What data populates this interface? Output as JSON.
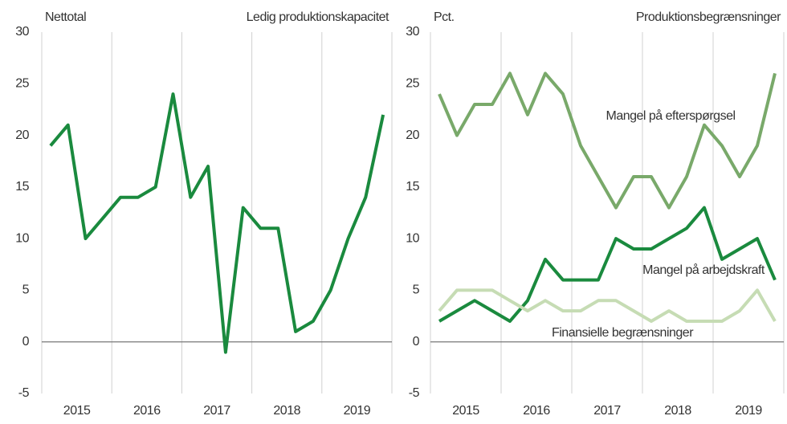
{
  "chart_data": [
    {
      "type": "line",
      "title": "Ledig produktionskapacitet",
      "ylabel": "Nettotal",
      "x_labels": [
        "2015",
        "2016",
        "2017",
        "2018",
        "2019"
      ],
      "ylim": [
        -5,
        30
      ],
      "yticks": [
        -5,
        0,
        5,
        10,
        15,
        20,
        25,
        30
      ],
      "series": [
        {
          "color": "#1a8a3e",
          "values": [
            19,
            21,
            10,
            12,
            14,
            14,
            15,
            24,
            14,
            17,
            -1,
            13,
            11,
            11,
            1,
            2,
            5,
            10,
            14,
            22
          ]
        }
      ]
    },
    {
      "type": "line",
      "title": "Produktionsbegrænsninger",
      "ylabel": "Pct.",
      "x_labels": [
        "2015",
        "2016",
        "2017",
        "2018",
        "2019"
      ],
      "ylim": [
        -5,
        30
      ],
      "yticks": [
        -5,
        0,
        5,
        10,
        15,
        20,
        25,
        30
      ],
      "series": [
        {
          "name": "Mangel på efterspørgsel",
          "color": "#79a96a",
          "values": [
            24,
            20,
            23,
            23,
            26,
            22,
            26,
            24,
            19,
            16,
            13,
            16,
            16,
            13,
            16,
            21,
            19,
            16,
            19,
            26
          ]
        },
        {
          "name": "Mangel på arbejdskraft",
          "color": "#1a8a3e",
          "values": [
            2,
            3,
            4,
            3,
            2,
            4,
            8,
            6,
            6,
            6,
            10,
            9,
            9,
            10,
            11,
            13,
            8,
            9,
            10,
            6
          ]
        },
        {
          "name": "Finansielle begrænsninger",
          "color": "#c6dcb4",
          "values": [
            3,
            5,
            5,
            5,
            4,
            3,
            4,
            3,
            3,
            4,
            4,
            3,
            2,
            3,
            2,
            2,
            2,
            3,
            5,
            2
          ]
        }
      ]
    }
  ]
}
